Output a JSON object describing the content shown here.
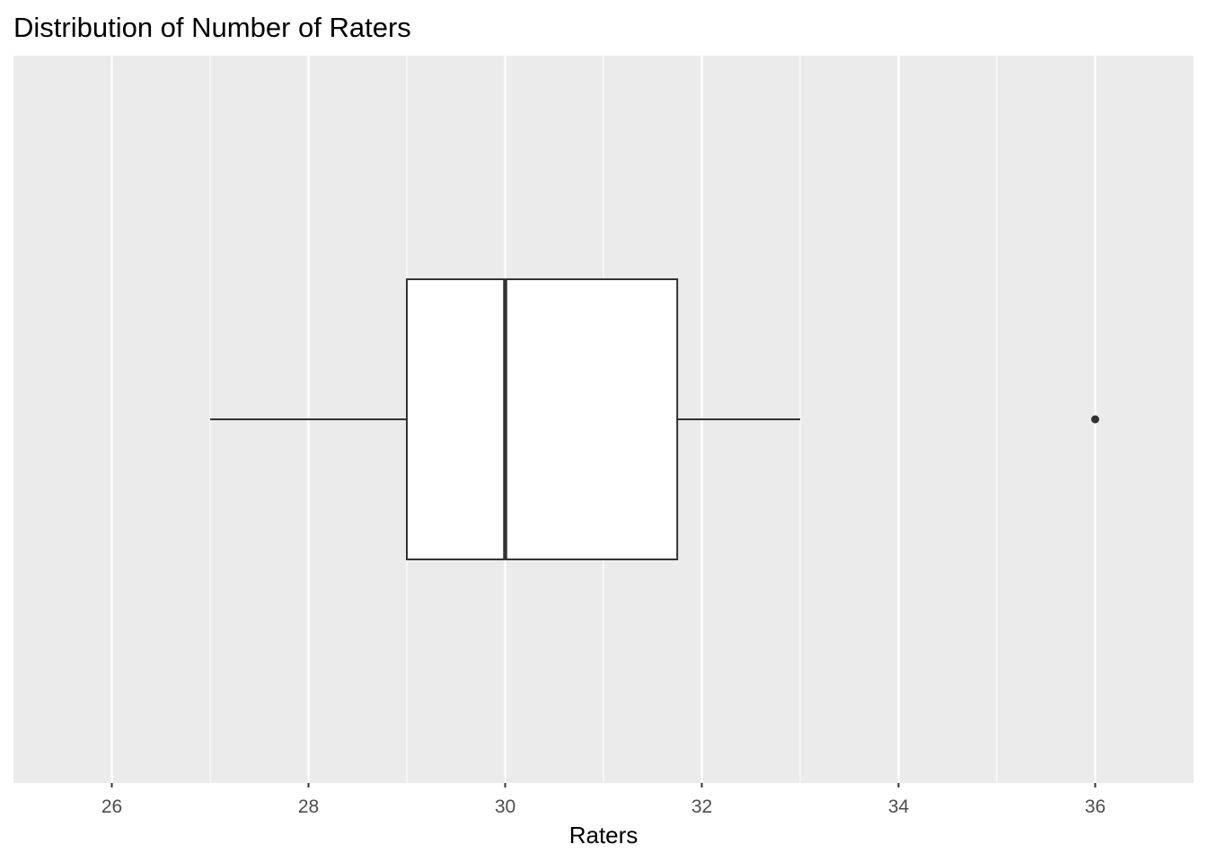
{
  "chart_data": {
    "type": "boxplot",
    "title": "Distribution of Number of Raters",
    "xlabel": "Raters",
    "ylabel": "",
    "xlim": [
      25,
      37
    ],
    "x_ticks": [
      26,
      28,
      30,
      32,
      34,
      36
    ],
    "x_tick_labels": [
      "26",
      "28",
      "30",
      "32",
      "34",
      "36"
    ],
    "grid": true,
    "legend": "none",
    "orientation": "horizontal",
    "box": {
      "whisker_low": 27,
      "q1": 29,
      "median": 30,
      "q3": 31.75,
      "whisker_high": 33,
      "outliers": [
        36
      ]
    },
    "colors": {
      "panel_background": "#ebebeb",
      "grid_major": "#ffffff",
      "box_fill": "#ffffff",
      "box_stroke": "#333333"
    }
  }
}
